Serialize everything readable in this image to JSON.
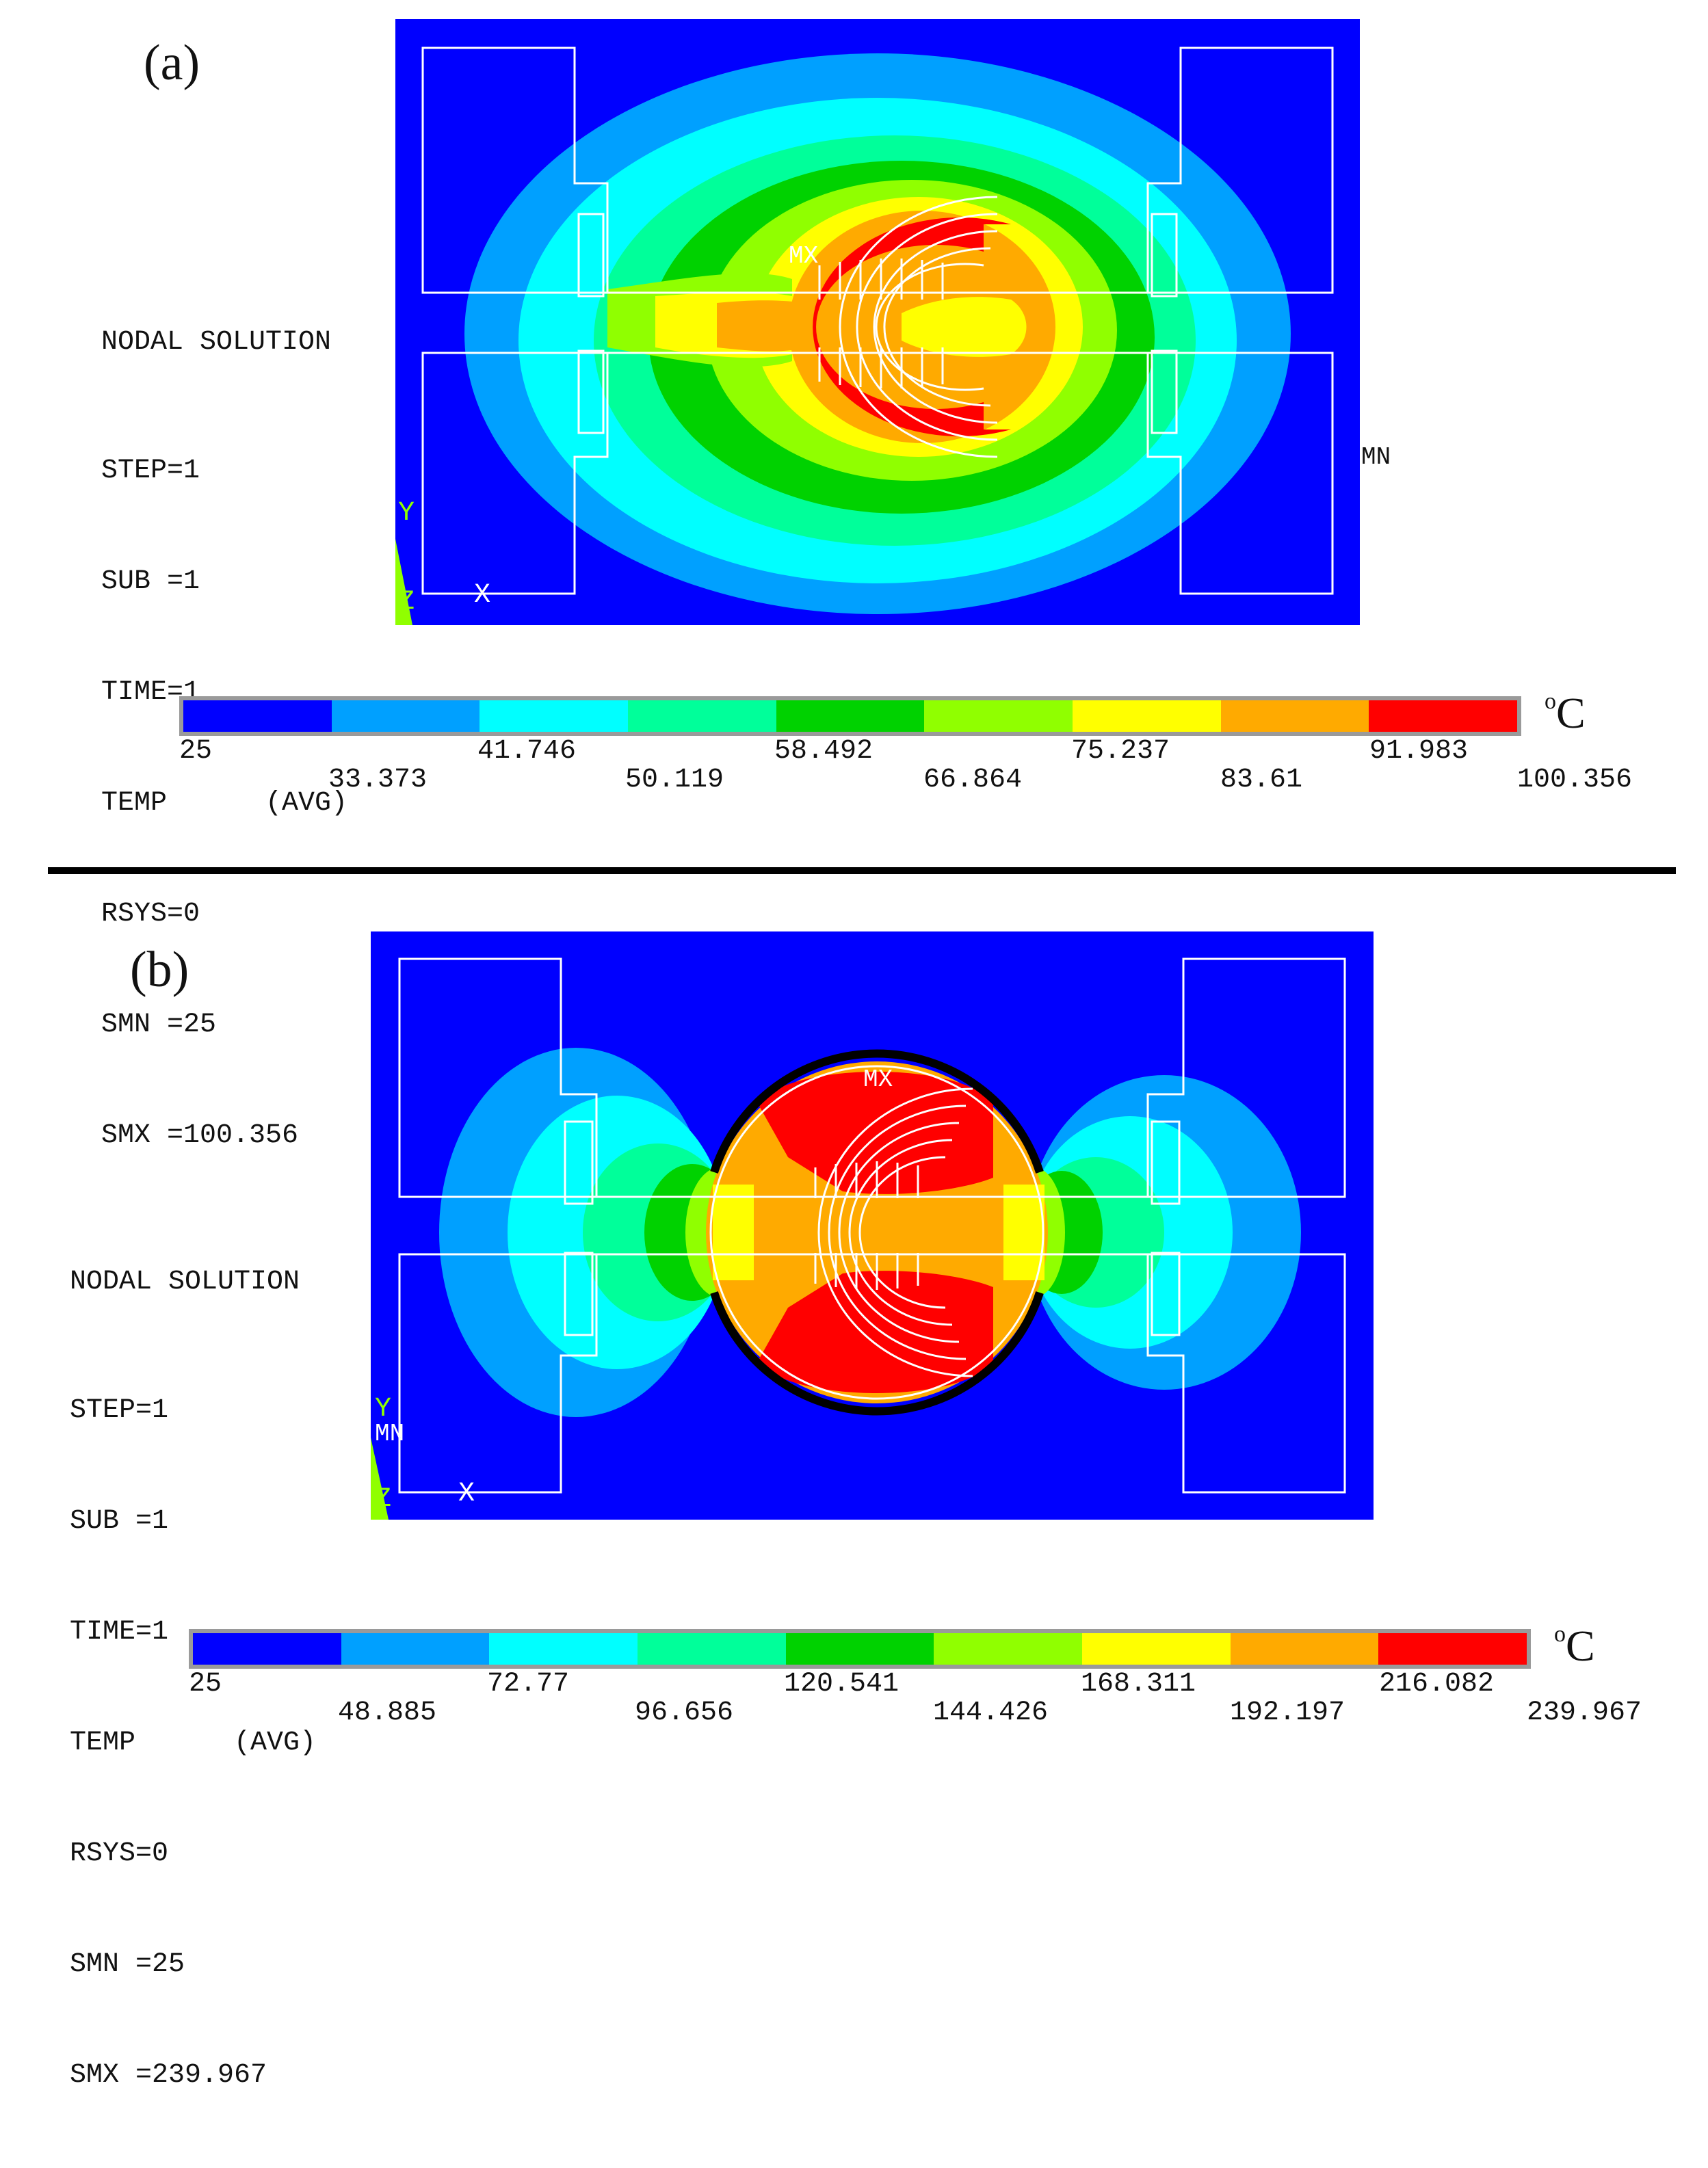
{
  "divider": true,
  "panels": [
    {
      "label": "(a)",
      "info": {
        "title": "NODAL SOLUTION",
        "step": "STEP=1",
        "sub": "SUB =1",
        "time": "TIME=1",
        "temp": "TEMP      (AVG)",
        "rsys": "RSYS=0",
        "smn": "SMN =25",
        "smx": "SMX =100.356"
      },
      "markers": {
        "mx": "MX",
        "mn": "MN",
        "axis_y": "Y",
        "axis_z": "Z",
        "axis_x": "X"
      },
      "legend": {
        "unit_sup": "o",
        "unit": "C",
        "upper_ticks": [
          "25",
          "41.746",
          "58.492",
          "75.237",
          "91.983"
        ],
        "lower_ticks": [
          "33.373",
          "50.119",
          "66.864",
          "83.61",
          "100.356"
        ],
        "colors": [
          "#0000ff",
          "#00a0ff",
          "#00ffff",
          "#00ff9a",
          "#00d200",
          "#90ff00",
          "#ffff00",
          "#ffaa00",
          "#ff0000"
        ]
      }
    },
    {
      "label": "(b)",
      "info": {
        "title": "NODAL SOLUTION",
        "step": "STEP=1",
        "sub": "SUB =1",
        "time": "TIME=1",
        "temp": "TEMP      (AVG)",
        "rsys": "RSYS=0",
        "smn": "SMN =25",
        "smx": "SMX =239.967"
      },
      "markers": {
        "mx": "MX",
        "mn": "MN",
        "axis_y": "Y",
        "axis_z": "Z",
        "axis_x": "X"
      },
      "legend": {
        "unit_sup": "o",
        "unit": "C",
        "upper_ticks": [
          "25",
          "72.77",
          "120.541",
          "168.311",
          "216.082"
        ],
        "lower_ticks": [
          "48.885",
          "96.656",
          "144.426",
          "192.197",
          "239.967"
        ],
        "colors": [
          "#0000ff",
          "#00a0ff",
          "#00ffff",
          "#00ff9a",
          "#00d200",
          "#90ff00",
          "#ffff00",
          "#ffaa00",
          "#ff0000"
        ]
      }
    }
  ]
}
